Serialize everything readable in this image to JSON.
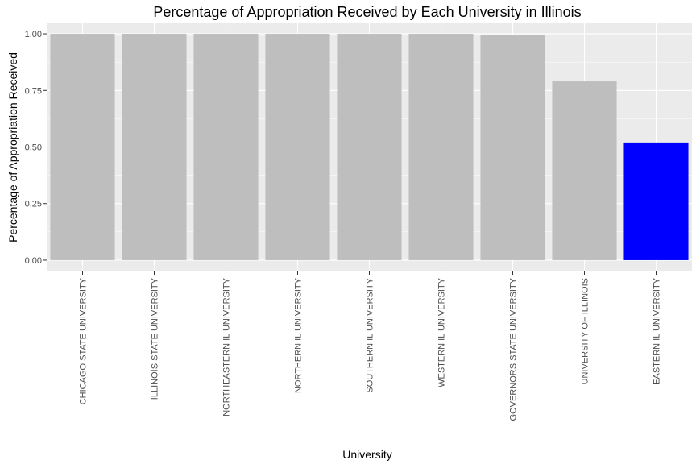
{
  "chart_data": {
    "type": "bar",
    "title": "Percentage of Appropriation Received by Each University in Illinois",
    "xlabel": "University",
    "ylabel": "Percentage of Appropriation Received",
    "categories": [
      "CHICAGO STATE UNIVERSITY",
      "ILLINOIS STATE UNIVERSITY",
      "NORTHEASTERN IL UNIVERSITY",
      "NORTHERN IL UNIVERSITY",
      "SOUTHERN IL UNIVERSITY",
      "WESTERN IL UNIVERSITY",
      "GOVERNORS STATE UNIVERSITY",
      "UNIVERSITY OF ILLINOIS",
      "EASTERN IL UNIVERSITY"
    ],
    "values": [
      1.0,
      1.0,
      1.0,
      1.0,
      1.0,
      1.0,
      0.995,
      0.79,
      0.52
    ],
    "bar_colors": [
      "#bebebe",
      "#bebebe",
      "#bebebe",
      "#bebebe",
      "#bebebe",
      "#bebebe",
      "#bebebe",
      "#bebebe",
      "#0000ff"
    ],
    "ylim": [
      -0.05,
      1.05
    ],
    "yticks": [
      0.0,
      0.25,
      0.5,
      0.75,
      1.0
    ],
    "ytick_labels": [
      "0.00",
      "0.25",
      "0.50",
      "0.75",
      "1.00"
    ],
    "grid": true,
    "panel_background": "#ebebeb",
    "grid_color": "#ffffff"
  }
}
